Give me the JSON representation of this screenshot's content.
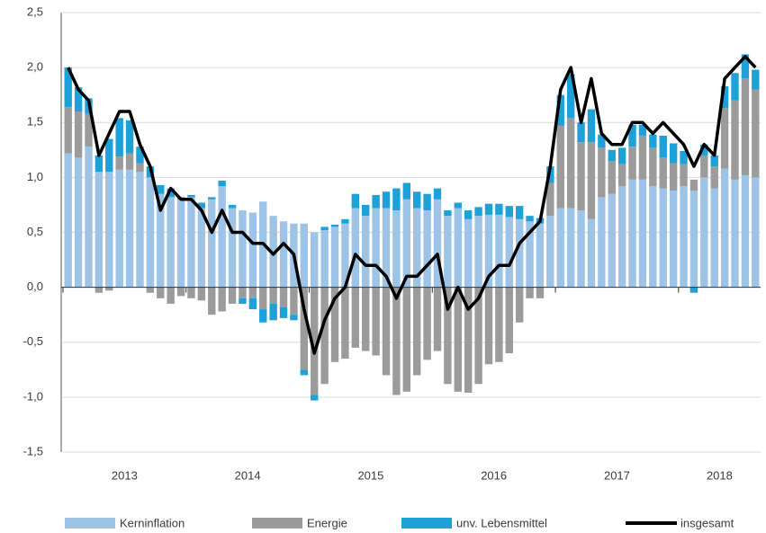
{
  "chart_data": {
    "type": "bar",
    "stacked": true,
    "categories": [
      null,
      null,
      null,
      null,
      null,
      "2013",
      null,
      null,
      null,
      null,
      null,
      null,
      null,
      null,
      null,
      null,
      null,
      "2014",
      null,
      null,
      null,
      null,
      null,
      null,
      null,
      null,
      null,
      null,
      null,
      "2015",
      null,
      null,
      null,
      null,
      null,
      null,
      null,
      null,
      null,
      null,
      null,
      "2016",
      null,
      null,
      null,
      null,
      null,
      null,
      null,
      null,
      null,
      null,
      null,
      "2017",
      null,
      null,
      null,
      null,
      null,
      null,
      null,
      null,
      null,
      "2018",
      null,
      null,
      null,
      null
    ],
    "series": [
      {
        "name": "Kerninflation",
        "color": "#9dc3e6",
        "values": [
          1.22,
          1.18,
          1.28,
          1.05,
          1.05,
          1.07,
          1.07,
          1.05,
          1.0,
          0.85,
          0.82,
          0.8,
          0.82,
          0.72,
          0.8,
          0.92,
          0.72,
          0.7,
          0.68,
          0.78,
          0.65,
          0.6,
          0.58,
          0.58,
          0.5,
          0.52,
          0.55,
          0.58,
          0.72,
          0.65,
          0.72,
          0.72,
          0.7,
          0.8,
          0.72,
          0.7,
          0.8,
          0.65,
          0.72,
          0.62,
          0.65,
          0.66,
          0.66,
          0.64,
          0.62,
          0.6,
          0.58,
          0.65,
          0.72,
          0.72,
          0.7,
          0.62,
          0.82,
          0.85,
          0.92,
          0.98,
          0.98,
          0.92,
          0.9,
          0.88,
          0.92,
          0.88,
          1.0,
          0.9,
          1.08,
          0.98,
          1.02,
          1.0
        ]
      },
      {
        "name": "Energie",
        "color": "#9b9b9b",
        "values": [
          0.42,
          0.42,
          0.3,
          -0.05,
          -0.03,
          0.12,
          0.15,
          0.08,
          -0.05,
          -0.1,
          -0.15,
          -0.08,
          -0.1,
          -0.12,
          -0.25,
          -0.22,
          -0.15,
          -0.1,
          -0.1,
          -0.2,
          -0.15,
          -0.18,
          -0.25,
          -0.75,
          -0.98,
          -0.88,
          -0.68,
          -0.65,
          -0.55,
          -0.58,
          -0.62,
          -0.8,
          -0.98,
          -0.95,
          -0.8,
          -0.66,
          -0.58,
          -0.88,
          -0.95,
          -0.96,
          -0.88,
          -0.7,
          -0.68,
          -0.6,
          -0.32,
          -0.1,
          -0.1,
          0.3,
          0.75,
          0.82,
          0.62,
          0.7,
          0.45,
          0.3,
          0.2,
          0.3,
          0.4,
          0.35,
          0.28,
          0.25,
          0.2,
          0.1,
          0.2,
          0.2,
          0.55,
          0.72,
          0.88,
          0.8
        ]
      },
      {
        "name": "unv. Lebensmittel",
        "color": "#1ea1d8",
        "values": [
          0.36,
          0.22,
          0.14,
          0.15,
          0.3,
          0.35,
          0.3,
          0.15,
          0.1,
          0.08,
          0.08,
          0.02,
          0.02,
          0.05,
          0.02,
          0.05,
          0.03,
          -0.05,
          -0.1,
          -0.12,
          -0.15,
          -0.1,
          -0.05,
          -0.05,
          -0.05,
          0.03,
          0.02,
          0.04,
          0.13,
          0.1,
          0.12,
          0.15,
          0.2,
          0.15,
          0.15,
          0.15,
          0.1,
          0.05,
          0.05,
          0.08,
          0.08,
          0.1,
          0.1,
          0.1,
          0.12,
          0.05,
          0.05,
          0.15,
          0.28,
          0.4,
          0.18,
          0.3,
          0.12,
          0.1,
          0.15,
          0.2,
          0.1,
          0.12,
          0.2,
          0.18,
          0.12,
          -0.05,
          0.1,
          0.1,
          0.2,
          0.25,
          0.22,
          0.18
        ]
      },
      {
        "name": "insgesamt",
        "color": "#000000",
        "type": "line",
        "values": [
          2.0,
          1.8,
          1.7,
          1.2,
          1.4,
          1.6,
          1.6,
          1.3,
          1.1,
          0.7,
          0.9,
          0.8,
          0.8,
          0.7,
          0.5,
          0.7,
          0.5,
          0.5,
          0.4,
          0.4,
          0.3,
          0.4,
          0.3,
          -0.2,
          -0.6,
          -0.3,
          -0.1,
          0.0,
          0.3,
          0.2,
          0.2,
          0.1,
          -0.1,
          0.1,
          0.1,
          0.2,
          0.3,
          -0.2,
          0.0,
          -0.2,
          -0.1,
          0.1,
          0.2,
          0.2,
          0.4,
          0.5,
          0.6,
          1.1,
          1.8,
          2.0,
          1.5,
          1.9,
          1.4,
          1.3,
          1.3,
          1.5,
          1.5,
          1.4,
          1.5,
          1.4,
          1.3,
          1.1,
          1.3,
          1.2,
          1.9,
          2.0,
          2.1,
          2.0
        ]
      }
    ],
    "ylim": [
      -1.5,
      2.5
    ],
    "yticks": [
      {
        "value": -1.5,
        "label": "-1,5"
      },
      {
        "value": -1,
        "label": "-1,0"
      },
      {
        "value": -0.5,
        "label": "-0,5"
      },
      {
        "value": 0,
        "label": "0,0"
      },
      {
        "value": 0.5,
        "label": "0,5"
      },
      {
        "value": 1,
        "label": "1,0"
      },
      {
        "value": 1.5,
        "label": "1,5"
      },
      {
        "value": 2,
        "label": "2,0"
      },
      {
        "value": 2.5,
        "label": "2,5"
      }
    ],
    "grid": true,
    "legend": "bottom"
  }
}
